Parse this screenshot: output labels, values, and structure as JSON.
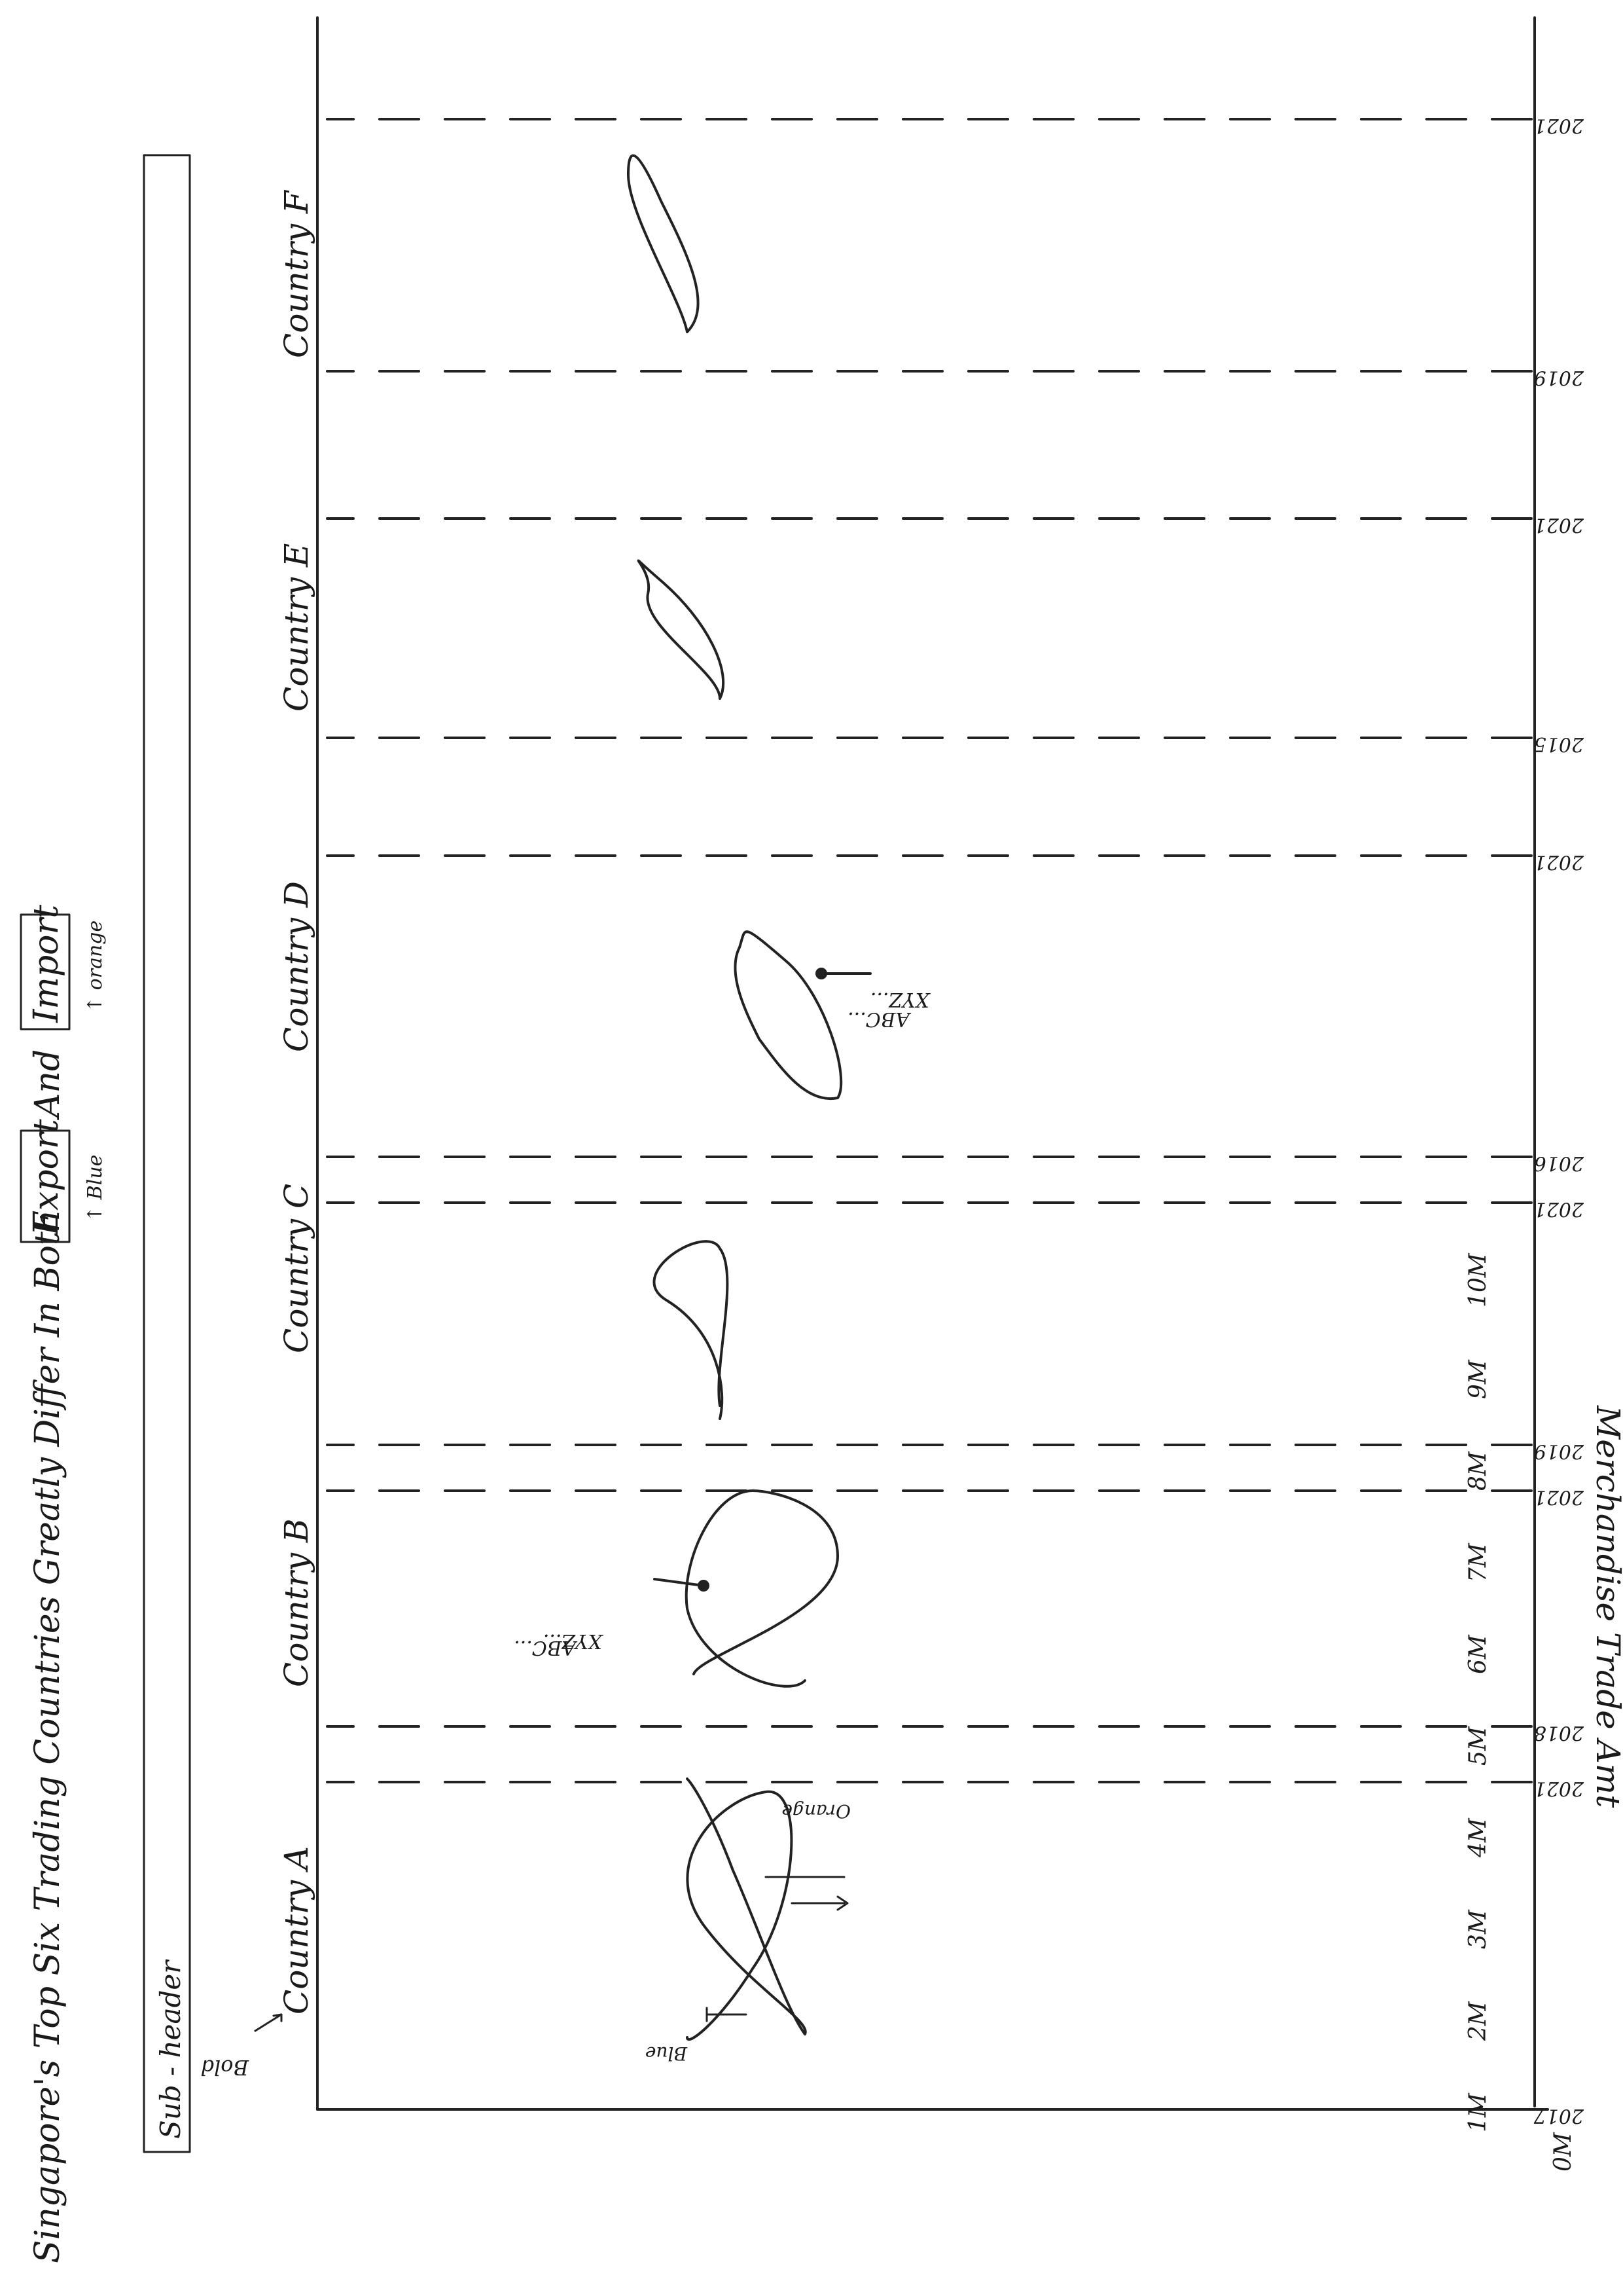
{
  "title": {
    "part1": "Singapore's Top Six Trading Countries Greatly Differ In Both",
    "export_word": "Export",
    "and_word": "And",
    "import_word": "Import",
    "export_note": "↑ Blue",
    "import_note": "↑ orange"
  },
  "subheader": "Sub - header",
  "annotations": {
    "bold_note": "Bold",
    "blue_note": "Blue",
    "orange_note": "Orange",
    "callout_line1": "ABC...",
    "callout_line2": "XYZ..."
  },
  "yaxis": {
    "label": "Merchandise Trade Amt",
    "ticks": [
      "0M",
      "1M",
      "2M",
      "3M",
      "4M",
      "5M",
      "6M",
      "7M",
      "8M",
      "9M",
      "10M"
    ]
  },
  "countries": [
    {
      "label": "Country A",
      "start": "2017",
      "end": "2021"
    },
    {
      "label": "Country B",
      "start": "2018",
      "end": "2021"
    },
    {
      "label": "Country C",
      "start": "2019",
      "end": "2021"
    },
    {
      "label": "Country D",
      "start": "2016",
      "end": "2021"
    },
    {
      "label": "Country E",
      "start": "2015",
      "end": "2021"
    },
    {
      "label": "Country F",
      "start": "2019",
      "end": "2021"
    }
  ],
  "colors": {
    "export": "#1f5fbf",
    "import": "#e07b1a",
    "ink": "#222222"
  }
}
